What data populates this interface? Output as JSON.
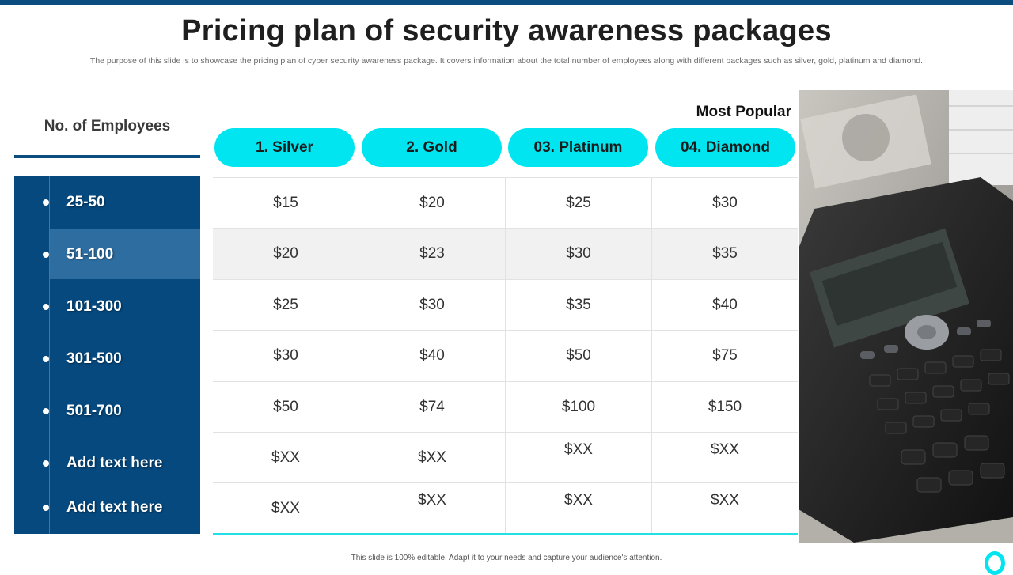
{
  "title": "Pricing plan of security awareness packages",
  "subtitle": "The purpose of this slide is to showcase the pricing plan of cyber security awareness package. It covers information about the total number of employees along with different packages such as silver, gold, platinum and diamond.",
  "employees": {
    "header": "No. of Employees",
    "ranges": [
      "25-50",
      "51-100",
      "101-300",
      "301-500",
      "501-700",
      "Add text here",
      "Add text here"
    ]
  },
  "most_popular": "Most Popular",
  "packages": [
    "1. Silver",
    "2. Gold",
    "03. Platinum",
    "04. Diamond"
  ],
  "prices": [
    [
      "$15",
      "$20",
      "$25",
      "$30"
    ],
    [
      "$20",
      "$23",
      "$30",
      "$35"
    ],
    [
      "$25",
      "$30",
      "$35",
      "$40"
    ],
    [
      "$30",
      "$40",
      "$50",
      "$75"
    ],
    [
      "$50",
      "$74",
      "$100",
      "$150"
    ],
    [
      "$XX",
      "$XX",
      "$XX",
      "$XX"
    ],
    [
      "$XX",
      "$XX",
      "$XX",
      "$XX"
    ]
  ],
  "footer": "This slide is 100% editable. Adapt it to your needs and capture your audience's attention.",
  "colors": {
    "navy": "#05497f",
    "cyan": "#00e5ef",
    "highlight": "#2d6da0"
  },
  "image": "calculator-and-dollar-bills-photo"
}
